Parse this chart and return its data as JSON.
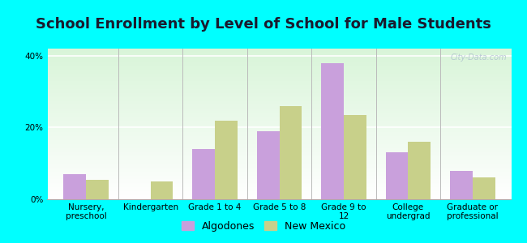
{
  "title": "School Enrollment by Level of School for Male Students",
  "categories": [
    "Nursery,\npreschool",
    "Kindergarten",
    "Grade 1 to 4",
    "Grade 5 to 8",
    "Grade 9 to\n12",
    "College\nundergrad",
    "Graduate or\nprofessional"
  ],
  "algodones": [
    7,
    0,
    14,
    19,
    38,
    13,
    8
  ],
  "new_mexico": [
    5.5,
    5,
    22,
    26,
    23.5,
    16,
    6
  ],
  "bar_color_algodones": "#c9a0dc",
  "bar_color_new_mexico": "#c8d08a",
  "background_color": "#00ffff",
  "ylabel_ticks": [
    "0%",
    "20%",
    "40%"
  ],
  "yticks": [
    0,
    20,
    40
  ],
  "ylim": [
    0,
    42
  ],
  "legend_algodones": "Algodones",
  "legend_new_mexico": "New Mexico",
  "bar_width": 0.35,
  "title_fontsize": 13,
  "tick_fontsize": 7.5,
  "legend_fontsize": 9
}
